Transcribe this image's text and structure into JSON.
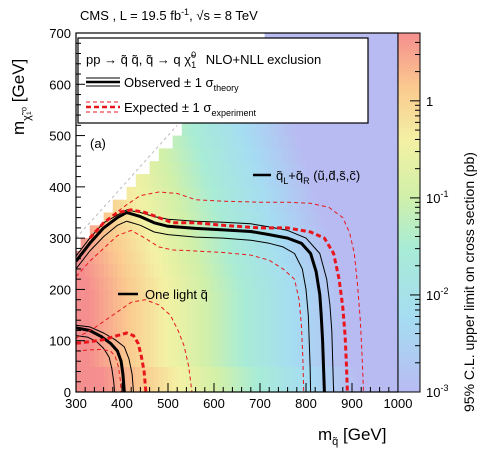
{
  "chart_data": {
    "type": "heatmap",
    "header": "CMS , L = 19.5 fb⁻¹, √s = 8 TeV",
    "header_parts": {
      "experiment": "CMS",
      "lumi_prefix": "L = 19.5 fb",
      "lumi_sup": "-1",
      "energy_text": "s = 8 TeV"
    },
    "legend": {
      "process": "pp → q̃ q̃, q̃ → q χ̃",
      "process_sup": "0",
      "process_sub": "1",
      "method": "NLO+NLL exclusion",
      "observed_text": "Observed ± 1 σ",
      "observed_sub": "theory",
      "expected_text": "Expected ± 1 σ",
      "expected_sub": "experiment"
    },
    "panel_label": "(a)",
    "label_four_squarks": "q̃",
    "label_four_L": "L",
    "label_four_plus": "+q̃",
    "label_four_R": "R",
    "label_four_flavors": "(ũ,d̃,s̃,c̃)",
    "label_one_squark": "One light q̃",
    "xlabel_main": "m",
    "xlabel_sub": "q̃",
    "xlabel_unit": "[GeV]",
    "ylabel_main": "m",
    "ylabel_sub": "χ̃₁⁰",
    "ylabel_unit": "[GeV]",
    "zlabel": "95% C.L. upper limit on cross section (pb)",
    "xlim": [
      300,
      1000
    ],
    "ylim": [
      0,
      700
    ],
    "zlim": [
      0.001,
      5
    ],
    "z_log_scale": true,
    "x_ticks": [
      300,
      400,
      500,
      600,
      700,
      800,
      900,
      1000
    ],
    "y_ticks": [
      0,
      100,
      200,
      300,
      400,
      500,
      600,
      700
    ],
    "z_ticks": [
      {
        "value": 1,
        "label": "1"
      },
      {
        "value": 0.1,
        "label": "10",
        "exp": "-1"
      },
      {
        "value": 0.01,
        "label": "10",
        "exp": "-2"
      },
      {
        "value": 0.001,
        "label": "10",
        "exp": "-3"
      }
    ],
    "colors": {
      "observed": "#000000",
      "expected": "#e8161c",
      "diagonal": "#bbbbbb",
      "frame": "#000000"
    },
    "series": [
      {
        "name": "Observed",
        "group": "four",
        "style": "observed-central",
        "points": [
          [
            300,
            255
          ],
          [
            330,
            290
          ],
          [
            360,
            320
          ],
          [
            390,
            340
          ],
          [
            410,
            350
          ],
          [
            440,
            342
          ],
          [
            470,
            330
          ],
          [
            500,
            323
          ],
          [
            560,
            319
          ],
          [
            620,
            316
          ],
          [
            680,
            313
          ],
          [
            720,
            307
          ],
          [
            760,
            300
          ],
          [
            790,
            290
          ],
          [
            810,
            270
          ],
          [
            822,
            235
          ],
          [
            830,
            190
          ],
          [
            833,
            150
          ],
          [
            836,
            100
          ],
          [
            838,
            50
          ],
          [
            840,
            0
          ]
        ]
      },
      {
        "name": "Observed +1σ theory",
        "group": "four",
        "style": "observed-band",
        "points": [
          [
            300,
            265
          ],
          [
            330,
            300
          ],
          [
            360,
            330
          ],
          [
            390,
            345
          ],
          [
            410,
            355
          ],
          [
            440,
            350
          ],
          [
            470,
            342
          ],
          [
            500,
            337
          ],
          [
            560,
            333
          ],
          [
            620,
            331
          ],
          [
            680,
            328
          ],
          [
            720,
            322
          ],
          [
            760,
            315
          ],
          [
            800,
            300
          ],
          [
            830,
            270
          ],
          [
            845,
            220
          ],
          [
            852,
            170
          ],
          [
            856,
            120
          ],
          [
            858,
            60
          ],
          [
            860,
            0
          ]
        ]
      },
      {
        "name": "Observed -1σ theory",
        "group": "four",
        "style": "observed-band",
        "points": [
          [
            300,
            240
          ],
          [
            330,
            275
          ],
          [
            360,
            303
          ],
          [
            390,
            325
          ],
          [
            410,
            333
          ],
          [
            440,
            325
          ],
          [
            470,
            312
          ],
          [
            500,
            307
          ],
          [
            560,
            302
          ],
          [
            620,
            300
          ],
          [
            680,
            296
          ],
          [
            720,
            290
          ],
          [
            750,
            283
          ],
          [
            775,
            270
          ],
          [
            792,
            240
          ],
          [
            800,
            200
          ],
          [
            805,
            150
          ],
          [
            807,
            100
          ],
          [
            809,
            50
          ],
          [
            810,
            0
          ]
        ]
      },
      {
        "name": "Expected",
        "group": "four",
        "style": "expected-central",
        "points": [
          [
            330,
            300
          ],
          [
            360,
            330
          ],
          [
            390,
            350
          ],
          [
            420,
            355
          ],
          [
            450,
            350
          ],
          [
            480,
            340
          ],
          [
            510,
            330
          ],
          [
            560,
            330
          ],
          [
            620,
            325
          ],
          [
            700,
            320
          ],
          [
            760,
            320
          ],
          [
            810,
            312
          ],
          [
            840,
            300
          ],
          [
            860,
            270
          ],
          [
            872,
            220
          ],
          [
            880,
            165
          ],
          [
            885,
            110
          ],
          [
            888,
            50
          ],
          [
            890,
            0
          ]
        ]
      },
      {
        "name": "Expected +1σ experiment",
        "group": "four",
        "style": "expected-band",
        "points": [
          [
            380,
            345
          ],
          [
            410,
            365
          ],
          [
            440,
            383
          ],
          [
            480,
            390
          ],
          [
            520,
            387
          ],
          [
            560,
            375
          ],
          [
            620,
            372
          ],
          [
            700,
            370
          ],
          [
            760,
            370
          ],
          [
            810,
            368
          ],
          [
            850,
            360
          ],
          [
            880,
            340
          ],
          [
            895,
            310
          ],
          [
            905,
            270
          ],
          [
            912,
            210
          ],
          [
            918,
            140
          ],
          [
            922,
            70
          ],
          [
            925,
            0
          ]
        ]
      },
      {
        "name": "Expected -1σ experiment",
        "group": "four",
        "style": "expected-band",
        "points": [
          [
            300,
            225
          ],
          [
            330,
            255
          ],
          [
            360,
            280
          ],
          [
            390,
            305
          ],
          [
            420,
            315
          ],
          [
            450,
            300
          ],
          [
            480,
            283
          ],
          [
            510,
            277
          ],
          [
            560,
            275
          ],
          [
            620,
            272
          ],
          [
            680,
            267
          ],
          [
            720,
            257
          ],
          [
            750,
            240
          ],
          [
            775,
            220
          ],
          [
            785,
            180
          ],
          [
            790,
            130
          ],
          [
            793,
            70
          ],
          [
            795,
            0
          ]
        ]
      },
      {
        "name": "Observed (one light)",
        "group": "one",
        "style": "observed-central",
        "points": [
          [
            300,
            125
          ],
          [
            330,
            120
          ],
          [
            355,
            108
          ],
          [
            375,
            95
          ],
          [
            390,
            80
          ],
          [
            398,
            60
          ],
          [
            402,
            35
          ],
          [
            405,
            0
          ]
        ]
      },
      {
        "name": "Observed +1σ (one light)",
        "group": "one",
        "style": "observed-band",
        "points": [
          [
            300,
            130
          ],
          [
            330,
            127
          ],
          [
            360,
            115
          ],
          [
            385,
            102
          ],
          [
            405,
            88
          ],
          [
            415,
            65
          ],
          [
            422,
            35
          ],
          [
            425,
            0
          ]
        ]
      },
      {
        "name": "Observed -1σ (one light)",
        "group": "one",
        "style": "observed-band",
        "points": [
          [
            300,
            110
          ],
          [
            325,
            107
          ],
          [
            345,
            98
          ],
          [
            360,
            85
          ],
          [
            372,
            68
          ],
          [
            378,
            45
          ],
          [
            382,
            20
          ],
          [
            384,
            0
          ]
        ]
      },
      {
        "name": "Expected (one light)",
        "group": "one",
        "style": "expected-central",
        "points": [
          [
            300,
            95
          ],
          [
            330,
            98
          ],
          [
            360,
            102
          ],
          [
            390,
            110
          ],
          [
            410,
            115
          ],
          [
            425,
            110
          ],
          [
            435,
            95
          ],
          [
            442,
            70
          ],
          [
            448,
            40
          ],
          [
            452,
            0
          ]
        ]
      },
      {
        "name": "Expected +1σ (one light)",
        "group": "one",
        "style": "expected-band",
        "points": [
          [
            300,
            105
          ],
          [
            340,
            125
          ],
          [
            380,
            150
          ],
          [
            420,
            175
          ],
          [
            450,
            180
          ],
          [
            480,
            170
          ],
          [
            505,
            150
          ],
          [
            522,
            120
          ],
          [
            535,
            90
          ],
          [
            545,
            50
          ],
          [
            552,
            0
          ]
        ]
      },
      {
        "name": "Expected -1σ (one light)",
        "group": "one",
        "style": "expected-band",
        "points": [
          [
            300,
            80
          ],
          [
            330,
            82
          ],
          [
            355,
            83
          ],
          [
            375,
            80
          ],
          [
            385,
            70
          ],
          [
            392,
            50
          ],
          [
            396,
            25
          ],
          [
            398,
            0
          ]
        ]
      }
    ]
  }
}
